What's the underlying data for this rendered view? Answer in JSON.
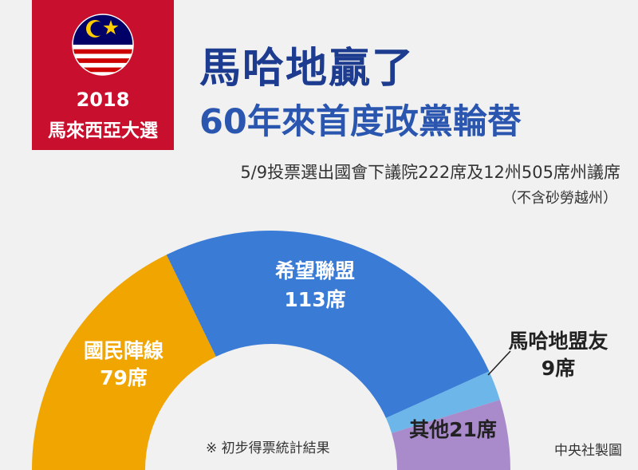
{
  "badge": {
    "year": "2018",
    "election": "馬來西亞大選",
    "flag_colors": {
      "red": "#cc0001",
      "white": "#ffffff",
      "blue": "#010066",
      "yellow": "#ffcc00"
    }
  },
  "headline": {
    "line1": "馬哈地贏了",
    "line2": "60年來首度政黨輪替"
  },
  "subtitle": "5/9投票選出國會下議院222席及12州505席州議席",
  "note": "（不含砂勞越州）",
  "footnote": "※ 初步得票統計結果",
  "credit": "中央社製圖",
  "chart_data": {
    "type": "pie",
    "style": "semicircle-donut",
    "total": 222,
    "series": [
      {
        "name": "國民陣線",
        "value": 79,
        "label_value": "79席",
        "color": "#f0a500"
      },
      {
        "name": "希望聯盟",
        "value": 113,
        "label_value": "113席",
        "color": "#3a7bd5"
      },
      {
        "name": "馬哈地盟友",
        "value": 9,
        "label_value": "9席",
        "color": "#6cb6ea"
      },
      {
        "name": "其他",
        "value": 21,
        "label_value": "其他21席",
        "color": "#a98bcb"
      }
    ]
  }
}
